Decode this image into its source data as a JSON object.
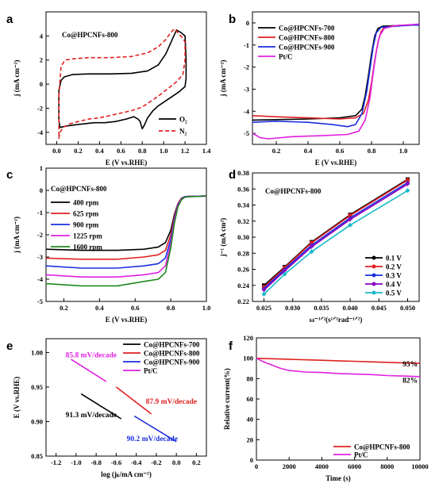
{
  "chart_data": [
    {
      "panel": "a",
      "type": "line",
      "annotation": "Co@HPCNFs-800",
      "xlabel": "E (V vs.RHE)",
      "ylabel": "j (mA cm⁻²)",
      "xlim": [
        -0.1,
        1.4
      ],
      "ylim": [
        -5,
        6
      ],
      "xticks": [
        0.0,
        0.2,
        0.4,
        0.6,
        0.8,
        1.0,
        1.2,
        1.4
      ],
      "yticks": [
        -4,
        -2,
        0,
        2,
        4
      ],
      "legend_position": "bottom-right",
      "series": [
        {
          "name": "O₂",
          "color": "#000000",
          "dash": false,
          "x": [
            0.02,
            0.04,
            0.07,
            0.15,
            0.3,
            0.5,
            0.7,
            0.85,
            0.95,
            1.02,
            1.08,
            1.12,
            1.16,
            1.2,
            1.21,
            1.21,
            1.2,
            1.15,
            1.1,
            1.05,
            1.0,
            0.95,
            0.9,
            0.85,
            0.82,
            0.8,
            0.78,
            0.76,
            0.72,
            0.65,
            0.55,
            0.45,
            0.35,
            0.25,
            0.15,
            0.08,
            0.03,
            0.02,
            0.02
          ],
          "y": [
            -0.5,
            0.3,
            0.6,
            0.8,
            0.85,
            0.85,
            0.9,
            1.1,
            1.6,
            2.5,
            3.7,
            4.5,
            4.3,
            4.0,
            2.0,
            0.5,
            -0.2,
            -0.6,
            -0.9,
            -1.2,
            -1.5,
            -1.8,
            -2.2,
            -2.8,
            -3.4,
            -3.7,
            -3.1,
            -2.9,
            -2.7,
            -2.9,
            -3.1,
            -3.2,
            -3.2,
            -3.3,
            -3.4,
            -3.5,
            -3.6,
            -3.0,
            -0.5
          ]
        },
        {
          "name": "N₂",
          "color": "#e02020",
          "dash": true,
          "x": [
            0.02,
            0.04,
            0.08,
            0.15,
            0.3,
            0.5,
            0.7,
            0.85,
            0.95,
            1.02,
            1.06,
            1.1,
            1.14,
            1.18,
            1.2,
            1.2,
            1.18,
            1.12,
            1.05,
            0.98,
            0.9,
            0.8,
            0.7,
            0.6,
            0.5,
            0.4,
            0.3,
            0.2,
            0.12,
            0.06,
            0.03,
            0.02,
            0.02
          ],
          "y": [
            -1.0,
            1.5,
            2.0,
            2.1,
            2.2,
            2.2,
            2.3,
            2.6,
            3.1,
            3.7,
            4.2,
            4.6,
            4.2,
            3.8,
            3.5,
            2.0,
            0.8,
            0.2,
            -0.3,
            -0.8,
            -1.3,
            -1.9,
            -2.2,
            -2.4,
            -2.6,
            -2.8,
            -2.9,
            -3.1,
            -3.3,
            -3.6,
            -4.0,
            -4.5,
            -1.0
          ]
        }
      ]
    },
    {
      "panel": "b",
      "type": "line",
      "xlabel": "E (V vs.RHE)",
      "ylabel": "j (mA cm⁻²)",
      "xlim": [
        0.05,
        1.1
      ],
      "ylim": [
        -5.5,
        0.5
      ],
      "xticks": [
        0.2,
        0.4,
        0.6,
        0.8,
        1.0
      ],
      "yticks": [
        -5,
        -4,
        -3,
        -2,
        -1,
        0
      ],
      "legend_position": "top-left",
      "series": [
        {
          "name": "Co@HPCNFs-700",
          "color": "#000000",
          "x": [
            0.05,
            0.2,
            0.4,
            0.6,
            0.7,
            0.74,
            0.76,
            0.78,
            0.8,
            0.82,
            0.84,
            0.87,
            0.95,
            1.05,
            1.1
          ],
          "y": [
            -4.4,
            -4.38,
            -4.35,
            -4.3,
            -4.2,
            -3.9,
            -3.3,
            -2.4,
            -1.4,
            -0.6,
            -0.25,
            -0.15,
            -0.12,
            -0.1,
            -0.1
          ]
        },
        {
          "name": "Co@HPCNFs-800",
          "color": "#e02020",
          "x": [
            0.05,
            0.2,
            0.4,
            0.6,
            0.7,
            0.75,
            0.78,
            0.8,
            0.82,
            0.84,
            0.86,
            0.88,
            0.95,
            1.05,
            1.1
          ],
          "y": [
            -4.2,
            -4.25,
            -4.3,
            -4.35,
            -4.3,
            -4.1,
            -3.5,
            -2.7,
            -1.7,
            -0.9,
            -0.4,
            -0.2,
            -0.12,
            -0.1,
            -0.08
          ]
        },
        {
          "name": "Co@HPCNFs-900",
          "color": "#1a2ee0",
          "x": [
            0.05,
            0.2,
            0.4,
            0.55,
            0.65,
            0.7,
            0.74,
            0.77,
            0.79,
            0.81,
            0.83,
            0.86,
            0.95,
            1.05,
            1.1
          ],
          "y": [
            -4.5,
            -4.45,
            -4.5,
            -4.6,
            -4.7,
            -4.6,
            -4.1,
            -3.1,
            -2.1,
            -1.1,
            -0.45,
            -0.2,
            -0.15,
            -0.1,
            -0.1
          ]
        },
        {
          "name": "Pt/C",
          "color": "#e020e0",
          "x": [
            0.05,
            0.1,
            0.15,
            0.3,
            0.5,
            0.65,
            0.72,
            0.76,
            0.79,
            0.81,
            0.83,
            0.85,
            0.88,
            0.95,
            1.05,
            1.1
          ],
          "y": [
            -5.0,
            -5.2,
            -5.25,
            -5.15,
            -5.1,
            -5.05,
            -4.9,
            -4.4,
            -3.4,
            -2.3,
            -1.3,
            -0.6,
            -0.25,
            -0.12,
            -0.08,
            -0.05
          ]
        }
      ]
    },
    {
      "panel": "c",
      "type": "line",
      "annotation": "Co@HPCNFs-800",
      "xlabel": "E (V vs.RHE)",
      "ylabel": "j (mA cm⁻²)",
      "xlim": [
        0.1,
        1.0
      ],
      "ylim": [
        -5,
        1
      ],
      "xticks": [
        0.2,
        0.4,
        0.6,
        0.8,
        1.0
      ],
      "yticks": [
        -5,
        -4,
        -3,
        -2,
        -1,
        0,
        1
      ],
      "legend_position": "top-left",
      "series": [
        {
          "name": "400 rpm",
          "color": "#000000",
          "x": [
            0.1,
            0.3,
            0.5,
            0.65,
            0.73,
            0.77,
            0.8,
            0.82,
            0.84,
            0.86,
            0.88,
            0.92,
            1.0
          ],
          "y": [
            -2.65,
            -2.7,
            -2.7,
            -2.65,
            -2.55,
            -2.35,
            -1.8,
            -1.1,
            -0.6,
            -0.35,
            -0.28,
            -0.27,
            -0.25
          ]
        },
        {
          "name": "625 rpm",
          "color": "#e02020",
          "x": [
            0.1,
            0.3,
            0.5,
            0.65,
            0.73,
            0.77,
            0.8,
            0.82,
            0.84,
            0.86,
            0.88,
            0.92,
            1.0
          ],
          "y": [
            -3.05,
            -3.1,
            -3.1,
            -3.0,
            -2.9,
            -2.7,
            -2.0,
            -1.2,
            -0.6,
            -0.35,
            -0.28,
            -0.27,
            -0.25
          ]
        },
        {
          "name": "900 rpm",
          "color": "#1a2ee0",
          "x": [
            0.1,
            0.3,
            0.5,
            0.65,
            0.73,
            0.77,
            0.8,
            0.82,
            0.84,
            0.86,
            0.88,
            0.92,
            1.0
          ],
          "y": [
            -3.4,
            -3.5,
            -3.5,
            -3.4,
            -3.3,
            -3.05,
            -2.2,
            -1.3,
            -0.65,
            -0.38,
            -0.28,
            -0.27,
            -0.25
          ]
        },
        {
          "name": "1225 rpm",
          "color": "#e020e0",
          "x": [
            0.1,
            0.3,
            0.5,
            0.65,
            0.73,
            0.77,
            0.8,
            0.82,
            0.84,
            0.86,
            0.88,
            0.92,
            1.0
          ],
          "y": [
            -3.8,
            -3.9,
            -3.9,
            -3.8,
            -3.7,
            -3.4,
            -2.4,
            -1.4,
            -0.7,
            -0.4,
            -0.3,
            -0.28,
            -0.26
          ]
        },
        {
          "name": "1600 rpm",
          "color": "#1f8a1f",
          "x": [
            0.1,
            0.3,
            0.5,
            0.65,
            0.73,
            0.77,
            0.8,
            0.82,
            0.84,
            0.86,
            0.88,
            0.92,
            1.0
          ],
          "y": [
            -4.2,
            -4.3,
            -4.3,
            -4.1,
            -4.0,
            -3.7,
            -2.6,
            -1.5,
            -0.75,
            -0.42,
            -0.3,
            -0.28,
            -0.26
          ]
        }
      ]
    },
    {
      "panel": "d",
      "type": "line",
      "annotation": "Co@HPCNFs-800",
      "xlabel": "ω⁻¹ᐟ²(s¹ᐟ²rad⁻¹ᐟ²)",
      "ylabel": "j⁻¹ (mA cm²)",
      "xlim": [
        0.023,
        0.052
      ],
      "ylim": [
        0.22,
        0.38
      ],
      "xticks": [
        0.025,
        0.03,
        0.035,
        0.04,
        0.045,
        0.05
      ],
      "yticks": [
        0.22,
        0.24,
        0.26,
        0.28,
        0.3,
        0.32,
        0.34,
        0.36,
        0.38
      ],
      "legend_position": "bottom-right",
      "x": [
        0.025,
        0.0286,
        0.0333,
        0.04,
        0.05
      ],
      "series": [
        {
          "name": "0.1 V",
          "color": "#000000",
          "marker": "square",
          "values": [
            0.24,
            0.263,
            0.294,
            0.328,
            0.372
          ]
        },
        {
          "name": "0.2 V",
          "color": "#e02020",
          "marker": "circle",
          "values": [
            0.238,
            0.262,
            0.293,
            0.327,
            0.371
          ]
        },
        {
          "name": "0.3 V",
          "color": "#1a2ee0",
          "marker": "triangle",
          "values": [
            0.236,
            0.26,
            0.29,
            0.324,
            0.368
          ]
        },
        {
          "name": "0.4 V",
          "color": "#8a00c0",
          "marker": "triangle-down",
          "values": [
            0.234,
            0.258,
            0.288,
            0.322,
            0.366
          ]
        },
        {
          "name": "0.5 V",
          "color": "#19b8c8",
          "marker": "diamond",
          "values": [
            0.229,
            0.254,
            0.282,
            0.315,
            0.358
          ]
        }
      ]
    },
    {
      "panel": "e",
      "type": "line",
      "xlabel": "log (jₖ/mA cm⁻²)",
      "ylabel": "E (V vs.RHE)",
      "xlim": [
        -1.3,
        0.3
      ],
      "ylim": [
        0.85,
        1.02
      ],
      "xticks": [
        -1.2,
        -1.0,
        -0.8,
        -0.6,
        -0.4,
        -0.2,
        0.0,
        0.2
      ],
      "yticks": [
        0.85,
        0.9,
        0.95,
        1.0
      ],
      "legend_position": "top-right",
      "series": [
        {
          "name": "Co@HPCNFs-700",
          "color": "#000000",
          "x": [
            -0.95,
            -0.55
          ],
          "y": [
            0.94,
            0.904
          ]
        },
        {
          "name": "Co@HPCNFs-800",
          "color": "#e02020",
          "x": [
            -0.6,
            -0.25
          ],
          "y": [
            0.95,
            0.911
          ]
        },
        {
          "name": "Co@HPCNFs-900",
          "color": "#1a2ee0",
          "x": [
            -0.42,
            0.0
          ],
          "y": [
            0.908,
            0.871
          ]
        },
        {
          "name": "Pt/C",
          "color": "#e020e0",
          "x": [
            -1.05,
            -0.7
          ],
          "y": [
            0.99,
            0.958
          ]
        }
      ],
      "annotations": [
        {
          "text": "85.8 mV/decade",
          "color": "#e020e0",
          "x": -0.85,
          "y": 0.993
        },
        {
          "text": "87.9 mV/decade",
          "color": "#e02020",
          "x": -0.05,
          "y": 0.926
        },
        {
          "text": "91.3 mV/decade",
          "color": "#000000",
          "x": -0.85,
          "y": 0.906
        },
        {
          "text": "90.2 mV/decade",
          "color": "#1a2ee0",
          "x": -0.24,
          "y": 0.872
        }
      ]
    },
    {
      "panel": "f",
      "type": "line",
      "xlabel": "Time (s)",
      "ylabel": "Relative current(%)",
      "xlim": [
        0,
        10000
      ],
      "ylim": [
        0,
        120
      ],
      "xticks": [
        0,
        2000,
        4000,
        6000,
        8000,
        10000
      ],
      "yticks": [
        0,
        20,
        40,
        60,
        80,
        100,
        120
      ],
      "legend_position": "bottom-right",
      "series": [
        {
          "name": "Co@HPCNFs-800",
          "color": "#e02020",
          "x": [
            0,
            1000,
            2000,
            3000,
            4000,
            5000,
            6000,
            7000,
            8000,
            9000,
            10000
          ],
          "y": [
            100,
            99.5,
            99,
            98.5,
            98,
            97.5,
            97,
            96.5,
            96,
            95.5,
            95
          ]
        },
        {
          "name": "Pt/C",
          "color": "#e020e0",
          "x": [
            0,
            500,
            1000,
            1500,
            2000,
            3000,
            4000,
            5000,
            6000,
            7000,
            8000,
            9000,
            10000
          ],
          "y": [
            100,
            96,
            93,
            90,
            88,
            86.5,
            86,
            85,
            84.5,
            84,
            83,
            82.5,
            82
          ]
        }
      ],
      "annotations": [
        {
          "text": "95%",
          "x": 9400,
          "y": 92
        },
        {
          "text": "82%",
          "x": 9400,
          "y": 76
        }
      ]
    }
  ]
}
